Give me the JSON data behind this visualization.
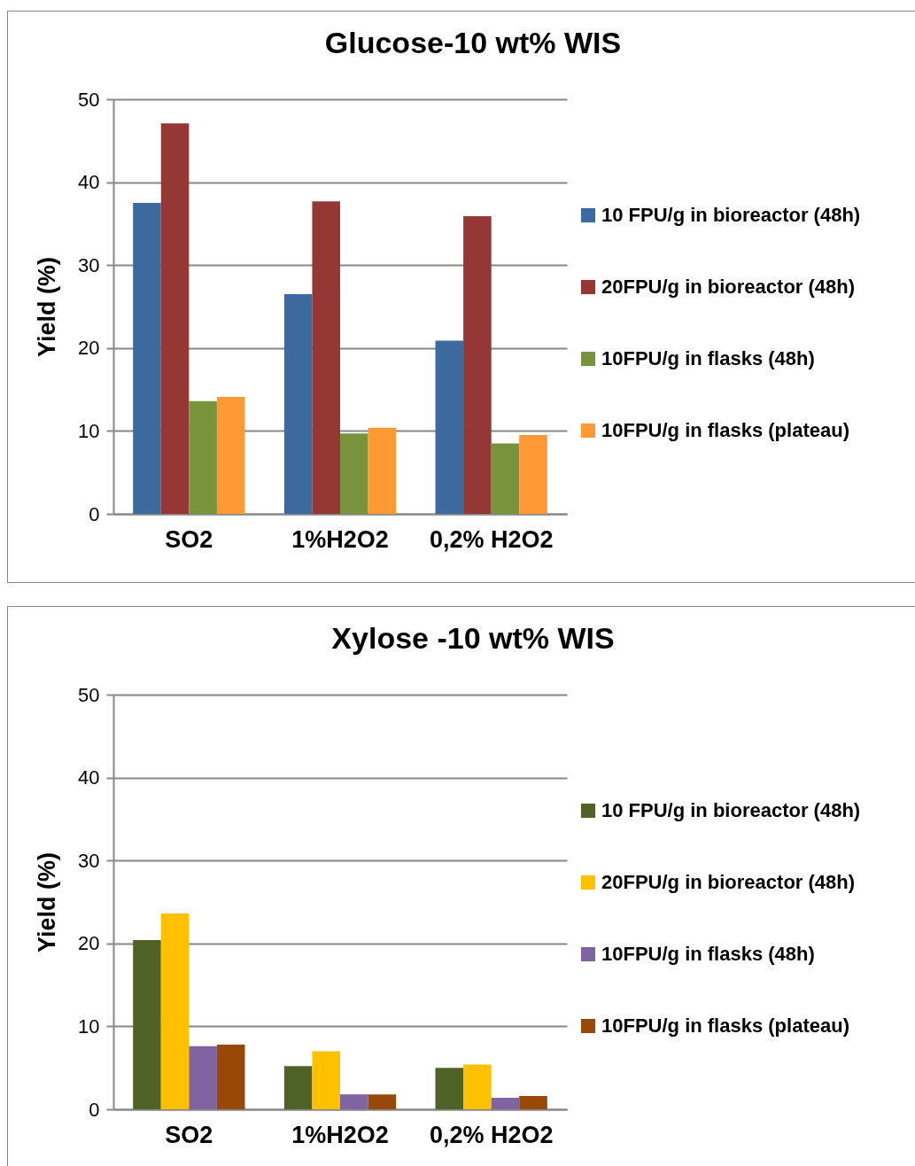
{
  "chart_data": [
    {
      "type": "bar",
      "title": "Glucose-10 wt% WIS",
      "ylabel": "Yield (%)",
      "categories": [
        "SO2",
        "1%H2O2",
        "0,2% H2O2"
      ],
      "ylim": [
        0,
        50
      ],
      "yticks": [
        0,
        10,
        20,
        30,
        40,
        50
      ],
      "grid": "y",
      "legend": "right",
      "series": [
        {
          "name": "10 FPU/g in bioreactor (48h)",
          "color": "#3d6a9e",
          "values": [
            37.5,
            26.5,
            20.9
          ]
        },
        {
          "name": "20FPU/g in bioreactor (48h)",
          "color": "#953735",
          "values": [
            47.1,
            37.7,
            35.9
          ]
        },
        {
          "name": "10FPU/g in flasks (48h)",
          "color": "#77933c",
          "values": [
            13.6,
            9.7,
            8.5
          ]
        },
        {
          "name": "10FPU/g in flasks (plateau)",
          "color": "#ff9933",
          "values": [
            14.1,
            10.4,
            9.5
          ]
        }
      ]
    },
    {
      "type": "bar",
      "title": "Xylose -10 wt% WIS",
      "ylabel": "Yield (%)",
      "categories": [
        "SO2",
        "1%H2O2",
        "0,2% H2O2"
      ],
      "ylim": [
        0,
        50
      ],
      "yticks": [
        0,
        10,
        20,
        30,
        40,
        50
      ],
      "grid": "y",
      "legend": "right",
      "series": [
        {
          "name": "10 FPU/g in bioreactor (48h)",
          "color": "#4f6228",
          "values": [
            20.4,
            5.2,
            5.0
          ]
        },
        {
          "name": "20FPU/g in bioreactor (48h)",
          "color": "#ffc000",
          "values": [
            23.6,
            7.0,
            5.4
          ]
        },
        {
          "name": "10FPU/g in flasks (48h)",
          "color": "#8064a2",
          "values": [
            7.6,
            1.8,
            1.4
          ]
        },
        {
          "name": "10FPU/g in flasks (plateau)",
          "color": "#984807",
          "values": [
            7.8,
            1.8,
            1.6
          ]
        }
      ]
    }
  ]
}
